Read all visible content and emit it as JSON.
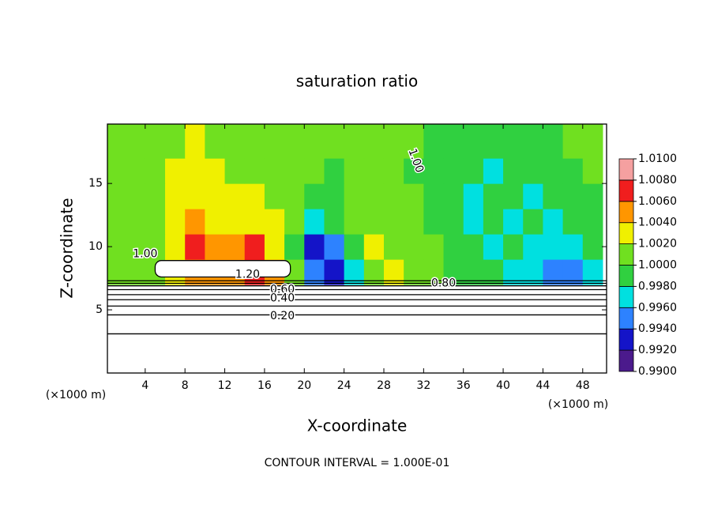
{
  "chart_data": {
    "type": "heatmap",
    "title": "saturation ratio",
    "x_label": "X-coordinate",
    "y_label": "Z-coordinate",
    "x_unit": "(×1000 m)",
    "y_unit": "(×1000 m)",
    "footnote": "CONTOUR INTERVAL = 1.000E-01",
    "xlim": [
      0.2,
      50.4
    ],
    "ylim": [
      0,
      19.7
    ],
    "xticks": [
      4,
      8,
      12,
      16,
      20,
      24,
      28,
      32,
      36,
      40,
      44,
      48
    ],
    "yticks": [
      5,
      10,
      15
    ],
    "x": [
      1,
      3,
      5,
      7,
      9,
      11,
      13,
      15,
      17,
      19,
      21,
      23,
      25,
      27,
      29,
      31,
      33,
      35,
      37,
      39,
      41,
      43,
      45,
      47,
      49
    ],
    "y": [
      8,
      10,
      12,
      14,
      16,
      18
    ],
    "z": [
      [
        1.0,
        1.001,
        1.001,
        1.003,
        1.004,
        1.005,
        1.005,
        1.006,
        1.004,
        1.0,
        0.994,
        0.992,
        0.997,
        1.001,
        1.002,
        1.001,
        1.0,
        0.999,
        0.998,
        0.998,
        0.997,
        0.996,
        0.995,
        0.994,
        0.996
      ],
      [
        1.0,
        1.0,
        1.001,
        1.002,
        1.006,
        1.004,
        1.004,
        1.007,
        1.003,
        0.999,
        0.993,
        0.995,
        0.999,
        1.002,
        1.001,
        1.0,
        1.0,
        0.999,
        0.998,
        0.997,
        0.998,
        0.997,
        0.996,
        0.997,
        0.998
      ],
      [
        1.0,
        1.0,
        1.001,
        1.003,
        1.004,
        1.003,
        1.003,
        1.003,
        1.002,
        1.0,
        0.997,
        0.998,
        1.0,
        1.001,
        1.001,
        1.0,
        0.999,
        0.998,
        0.997,
        0.998,
        0.997,
        0.998,
        0.997,
        0.998,
        0.999
      ],
      [
        1.0,
        1.0,
        1.001,
        1.002,
        1.003,
        1.002,
        1.002,
        1.002,
        1.001,
        1.0,
        0.999,
        0.999,
        1.0,
        1.001,
        1.0,
        1.0,
        0.999,
        0.998,
        0.997,
        0.998,
        0.998,
        0.997,
        0.998,
        0.999,
        0.999
      ],
      [
        1.0,
        1.001,
        1.001,
        1.002,
        1.002,
        1.002,
        1.001,
        1.001,
        1.001,
        1.0,
        1.0,
        0.999,
        1.0,
        1.001,
        1.0,
        0.999,
        0.999,
        0.998,
        0.998,
        0.997,
        0.998,
        0.998,
        0.999,
        0.999,
        1.0
      ],
      [
        1.0,
        1.001,
        1.001,
        1.001,
        1.002,
        1.001,
        1.001,
        1.001,
        1.0,
        1.0,
        1.0,
        1.0,
        1.0,
        1.001,
        1.001,
        1.0,
        0.999,
        0.999,
        0.998,
        0.998,
        0.998,
        0.999,
        0.999,
        1.0,
        1.0
      ]
    ],
    "colorbar": {
      "ticks": [
        {
          "value": 0.99,
          "label": "0.9900"
        },
        {
          "value": 0.992,
          "label": "0.9920"
        },
        {
          "value": 0.994,
          "label": "0.9940"
        },
        {
          "value": 0.996,
          "label": "0.9960"
        },
        {
          "value": 0.998,
          "label": "0.9980"
        },
        {
          "value": 1.0,
          "label": "1.0000"
        },
        {
          "value": 1.002,
          "label": "1.0020"
        },
        {
          "value": 1.004,
          "label": "1.0040"
        },
        {
          "value": 1.006,
          "label": "1.0060"
        },
        {
          "value": 1.008,
          "label": "1.0080"
        },
        {
          "value": 1.01,
          "label": "1.0100"
        }
      ],
      "colors": [
        "#4b1a8c",
        "#1414c8",
        "#2d82ff",
        "#00e0e0",
        "#30d040",
        "#70e020",
        "#f0f000",
        "#ff9600",
        "#f01e1e",
        "#f5a0a0"
      ]
    },
    "contour_lines": [
      {
        "level": 0.1,
        "y": 3.1
      },
      {
        "level": 0.2,
        "y": 4.6
      },
      {
        "level": 0.3,
        "y": 5.3
      },
      {
        "level": 0.4,
        "y": 5.8
      },
      {
        "level": 0.5,
        "y": 6.2
      },
      {
        "level": 0.6,
        "y": 6.6
      },
      {
        "level": 0.7,
        "y": 6.9
      },
      {
        "level": 0.8,
        "y": 7.1
      },
      {
        "level": 0.9,
        "y": 7.3
      }
    ],
    "patches": [
      {
        "level": 1.2,
        "x": [
          5,
          18.6
        ],
        "y": [
          7.6,
          8.9
        ]
      }
    ],
    "contour_labels": [
      {
        "level": 1.2,
        "label": "1.20",
        "x": 14.3,
        "y": 7.8
      },
      {
        "level": 0.6,
        "label": "0.60",
        "x": 17.8,
        "y": 6.6
      },
      {
        "level": 0.4,
        "label": "0.40",
        "x": 17.8,
        "y": 5.9
      },
      {
        "level": 0.2,
        "label": "0.20",
        "x": 17.8,
        "y": 4.5
      },
      {
        "level": 0.8,
        "label": "0.80",
        "x": 34,
        "y": 7.1
      },
      {
        "level": 1.0,
        "label": "1.00",
        "x": 4,
        "y": 9.4
      },
      {
        "level": 1.0,
        "label": "1.00",
        "x": 31.2,
        "y": 16.8
      }
    ]
  }
}
